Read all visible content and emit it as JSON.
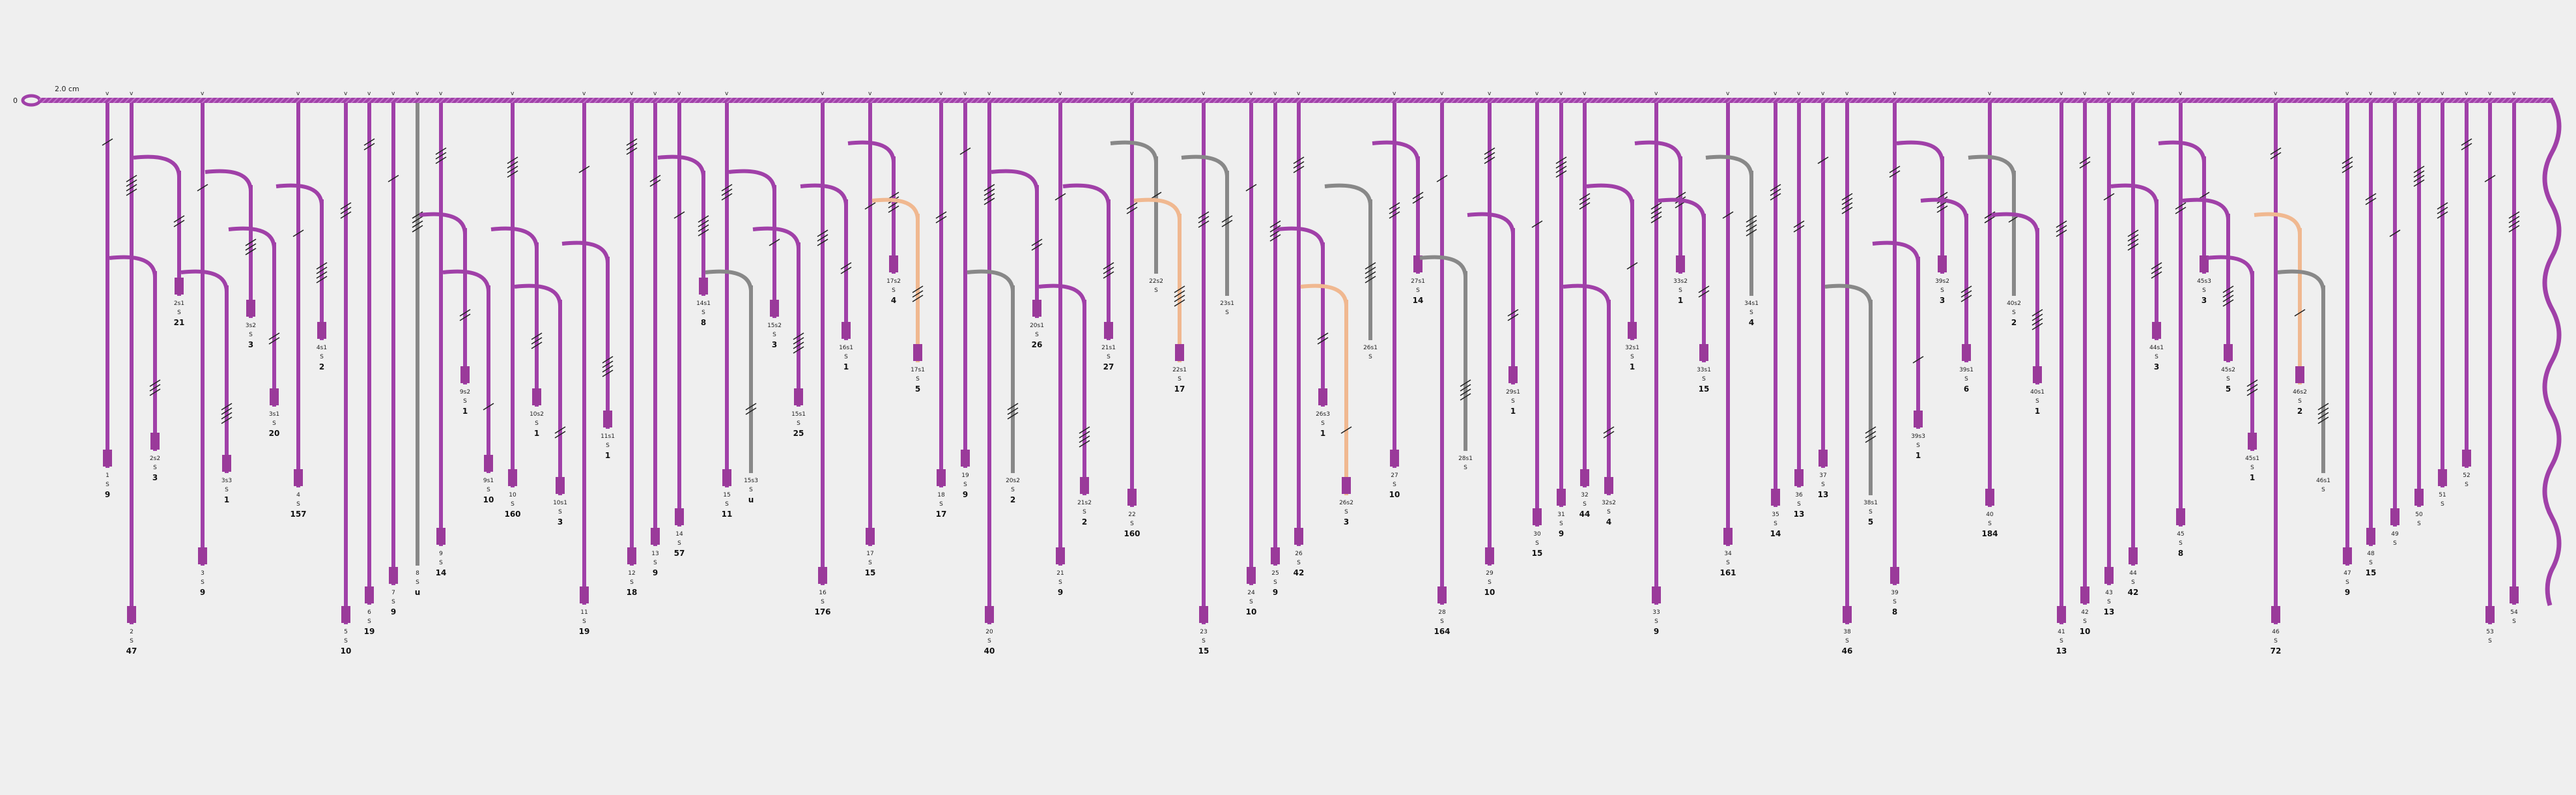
{
  "scale_label": "2.0 cm",
  "origin_label": "0",
  "stub_label": "u",
  "spin_label": "S",
  "colors": {
    "purple": "#a040a8",
    "peach": "#f0b890",
    "gray": "#888888",
    "knot": "#9a3a9a"
  },
  "cords": [
    {
      "id": "1",
      "value": "9"
    },
    {
      "id": "2",
      "value": "47"
    },
    {
      "id": "2s2",
      "value": "3"
    },
    {
      "id": "2s1",
      "value": "21"
    },
    {
      "id": "3",
      "value": "9"
    },
    {
      "id": "3s3",
      "value": "1"
    },
    {
      "id": "3s2",
      "value": "3"
    },
    {
      "id": "3s1",
      "value": "20"
    },
    {
      "id": "4",
      "value": "157"
    },
    {
      "id": "4s1",
      "value": "2"
    },
    {
      "id": "5",
      "value": "10"
    },
    {
      "id": "6",
      "value": "19"
    },
    {
      "id": "7",
      "value": "9"
    },
    {
      "id": "8",
      "value": "u"
    },
    {
      "id": "9",
      "value": "14"
    },
    {
      "id": "9s2",
      "value": "1"
    },
    {
      "id": "9s1",
      "value": "10"
    },
    {
      "id": "10",
      "value": "160"
    },
    {
      "id": "10s2",
      "value": "1"
    },
    {
      "id": "10s1",
      "value": "3"
    },
    {
      "id": "11",
      "value": "19"
    },
    {
      "id": "11s1",
      "value": "1"
    },
    {
      "id": "12",
      "value": "18"
    },
    {
      "id": "13",
      "value": "9"
    },
    {
      "id": "14",
      "value": "57"
    },
    {
      "id": "14s1",
      "value": "8"
    },
    {
      "id": "15",
      "value": "11"
    },
    {
      "id": "15s3",
      "value": "u"
    },
    {
      "id": "15s2",
      "value": "3"
    },
    {
      "id": "15s1",
      "value": "25"
    },
    {
      "id": "16",
      "value": "176"
    },
    {
      "id": "16s1",
      "value": "1"
    },
    {
      "id": "17",
      "value": "15"
    },
    {
      "id": "17s2",
      "value": "4"
    },
    {
      "id": "17s1",
      "value": "5"
    },
    {
      "id": "18",
      "value": "17"
    },
    {
      "id": "19",
      "value": "9"
    },
    {
      "id": "20",
      "value": "40"
    },
    {
      "id": "20s2",
      "value": "2"
    },
    {
      "id": "20s1",
      "value": "26"
    },
    {
      "id": "21",
      "value": "9"
    },
    {
      "id": "21s2",
      "value": "2"
    },
    {
      "id": "21s1",
      "value": "27"
    },
    {
      "id": "22",
      "value": "160"
    },
    {
      "id": "22s2",
      "value": ""
    },
    {
      "id": "22s1",
      "value": "17"
    },
    {
      "id": "23",
      "value": "15"
    },
    {
      "id": "23s1",
      "value": ""
    },
    {
      "id": "24",
      "value": "10"
    },
    {
      "id": "25",
      "value": "9"
    },
    {
      "id": "26",
      "value": "42"
    },
    {
      "id": "26s3",
      "value": "1"
    },
    {
      "id": "26s2",
      "value": "3"
    },
    {
      "id": "26s1",
      "value": ""
    },
    {
      "id": "27",
      "value": "10"
    },
    {
      "id": "27s1",
      "value": "14"
    },
    {
      "id": "28",
      "value": "164"
    },
    {
      "id": "28s1",
      "value": ""
    },
    {
      "id": "29",
      "value": "10"
    },
    {
      "id": "29s1",
      "value": "1"
    },
    {
      "id": "30",
      "value": "15"
    },
    {
      "id": "31",
      "value": "9"
    },
    {
      "id": "32",
      "value": "44"
    },
    {
      "id": "32s2",
      "value": "4"
    },
    {
      "id": "32s1",
      "value": "1"
    },
    {
      "id": "33",
      "value": "9"
    },
    {
      "id": "33s2",
      "value": "1"
    },
    {
      "id": "33s1",
      "value": "15"
    },
    {
      "id": "34",
      "value": "161"
    },
    {
      "id": "34s1",
      "value": "4"
    },
    {
      "id": "35",
      "value": "14"
    },
    {
      "id": "36",
      "value": "13"
    },
    {
      "id": "37",
      "value": "13"
    },
    {
      "id": "38",
      "value": "46"
    },
    {
      "id": "38s1",
      "value": "5"
    },
    {
      "id": "39",
      "value": "8"
    },
    {
      "id": "39s3",
      "value": "1"
    },
    {
      "id": "39s2",
      "value": "3"
    },
    {
      "id": "39s1",
      "value": "6"
    },
    {
      "id": "40",
      "value": "184"
    },
    {
      "id": "40s2",
      "value": "2"
    },
    {
      "id": "40s1",
      "value": "1"
    },
    {
      "id": "41",
      "value": "13"
    },
    {
      "id": "42",
      "value": "10"
    },
    {
      "id": "43",
      "value": "13"
    },
    {
      "id": "44",
      "value": "42"
    },
    {
      "id": "44s1",
      "value": "3"
    },
    {
      "id": "45",
      "value": "8"
    },
    {
      "id": "45s3",
      "value": "3"
    },
    {
      "id": "45s2",
      "value": "5"
    },
    {
      "id": "45s1",
      "value": "1"
    },
    {
      "id": "46",
      "value": "72"
    },
    {
      "id": "46s2",
      "value": "2"
    },
    {
      "id": "46s1",
      "value": ""
    },
    {
      "id": "47",
      "value": "9"
    },
    {
      "id": "48",
      "value": "15"
    },
    {
      "id": "49",
      "value": ""
    },
    {
      "id": "50",
      "value": ""
    },
    {
      "id": "51",
      "value": ""
    },
    {
      "id": "52",
      "value": ""
    },
    {
      "id": "53",
      "value": ""
    },
    {
      "id": "54",
      "value": ""
    }
  ]
}
